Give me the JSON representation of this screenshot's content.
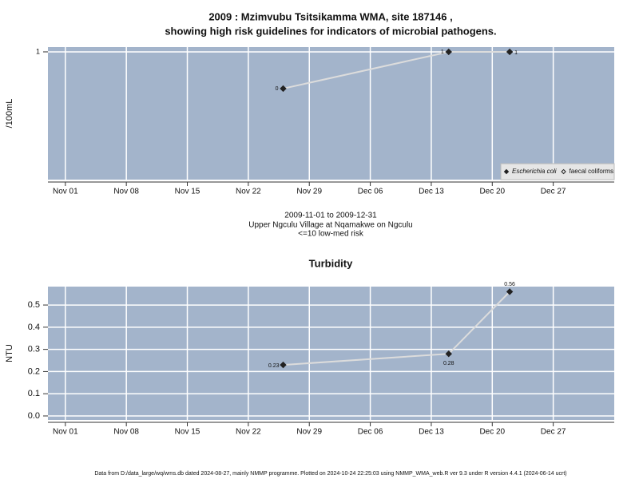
{
  "chart_data": [
    {
      "type": "line",
      "title": [
        "2009 : Mzimvubu Tsitsikamma WMA, site 187146 ,",
        "showing high risk guidelines for indicators of microbial pathogens."
      ],
      "y_label": "/100mL",
      "notes": [
        "2009-11-01 to 2009-12-31",
        "Upper Ngculu Village at Nqamakwe on Ngculu",
        "<=10 low-med risk"
      ],
      "x": [
        "Nov 26",
        "Dec 15",
        "Dec 22"
      ],
      "series": [
        {
          "name": "Escherichia coli",
          "color": "#222222",
          "marker": "filled",
          "values": [
            0,
            1,
            1
          ]
        },
        {
          "name": "faecal coliforms",
          "color": "#222222",
          "marker": "open",
          "values": [
            null,
            null,
            null
          ]
        }
      ],
      "xlim": [
        "Oct 30",
        "Jan 03"
      ],
      "xticks": [
        "Nov 01",
        "Nov 08",
        "Nov 15",
        "Nov 22",
        "Nov 29",
        "Dec 06",
        "Dec 13",
        "Dec 20",
        "Dec 27"
      ],
      "ylim": [
        -2.48,
        1.13
      ],
      "yticks": [
        1
      ],
      "grid": true,
      "background": "#a3b4cb",
      "line_color": "#dcdcdc",
      "legend": "lower right"
    },
    {
      "type": "line",
      "title": "Turbidity",
      "y_label": "NTU",
      "x": [
        "Nov 26",
        "Dec 15",
        "Dec 22"
      ],
      "values": [
        0.23,
        0.28,
        0.56
      ],
      "color": "#222222",
      "xlim": [
        "Oct 30",
        "Jan 03"
      ],
      "xticks": [
        "Nov 01",
        "Nov 08",
        "Nov 15",
        "Nov 22",
        "Nov 29",
        "Dec 06",
        "Dec 13",
        "Dec 20",
        "Dec 27"
      ],
      "ylim": [
        -0.018,
        0.583
      ],
      "yticks": [
        {
          "value": 0,
          "label": "0.0"
        },
        0.1,
        0.2,
        0.3,
        0.4,
        0.5
      ],
      "grid": true,
      "background": "#a3b4cb",
      "line_color": "#dcdcdc"
    }
  ],
  "footer": "Data from D:/data_large/wq/wms.db dated 2024-08-27, mainly NMMP programme. Plotted on 2024-10-24 22:25:03 using NMMP_WMA_web.R ver 9.3 under R version 4.4.1 (2024-06-14 ucrt)"
}
